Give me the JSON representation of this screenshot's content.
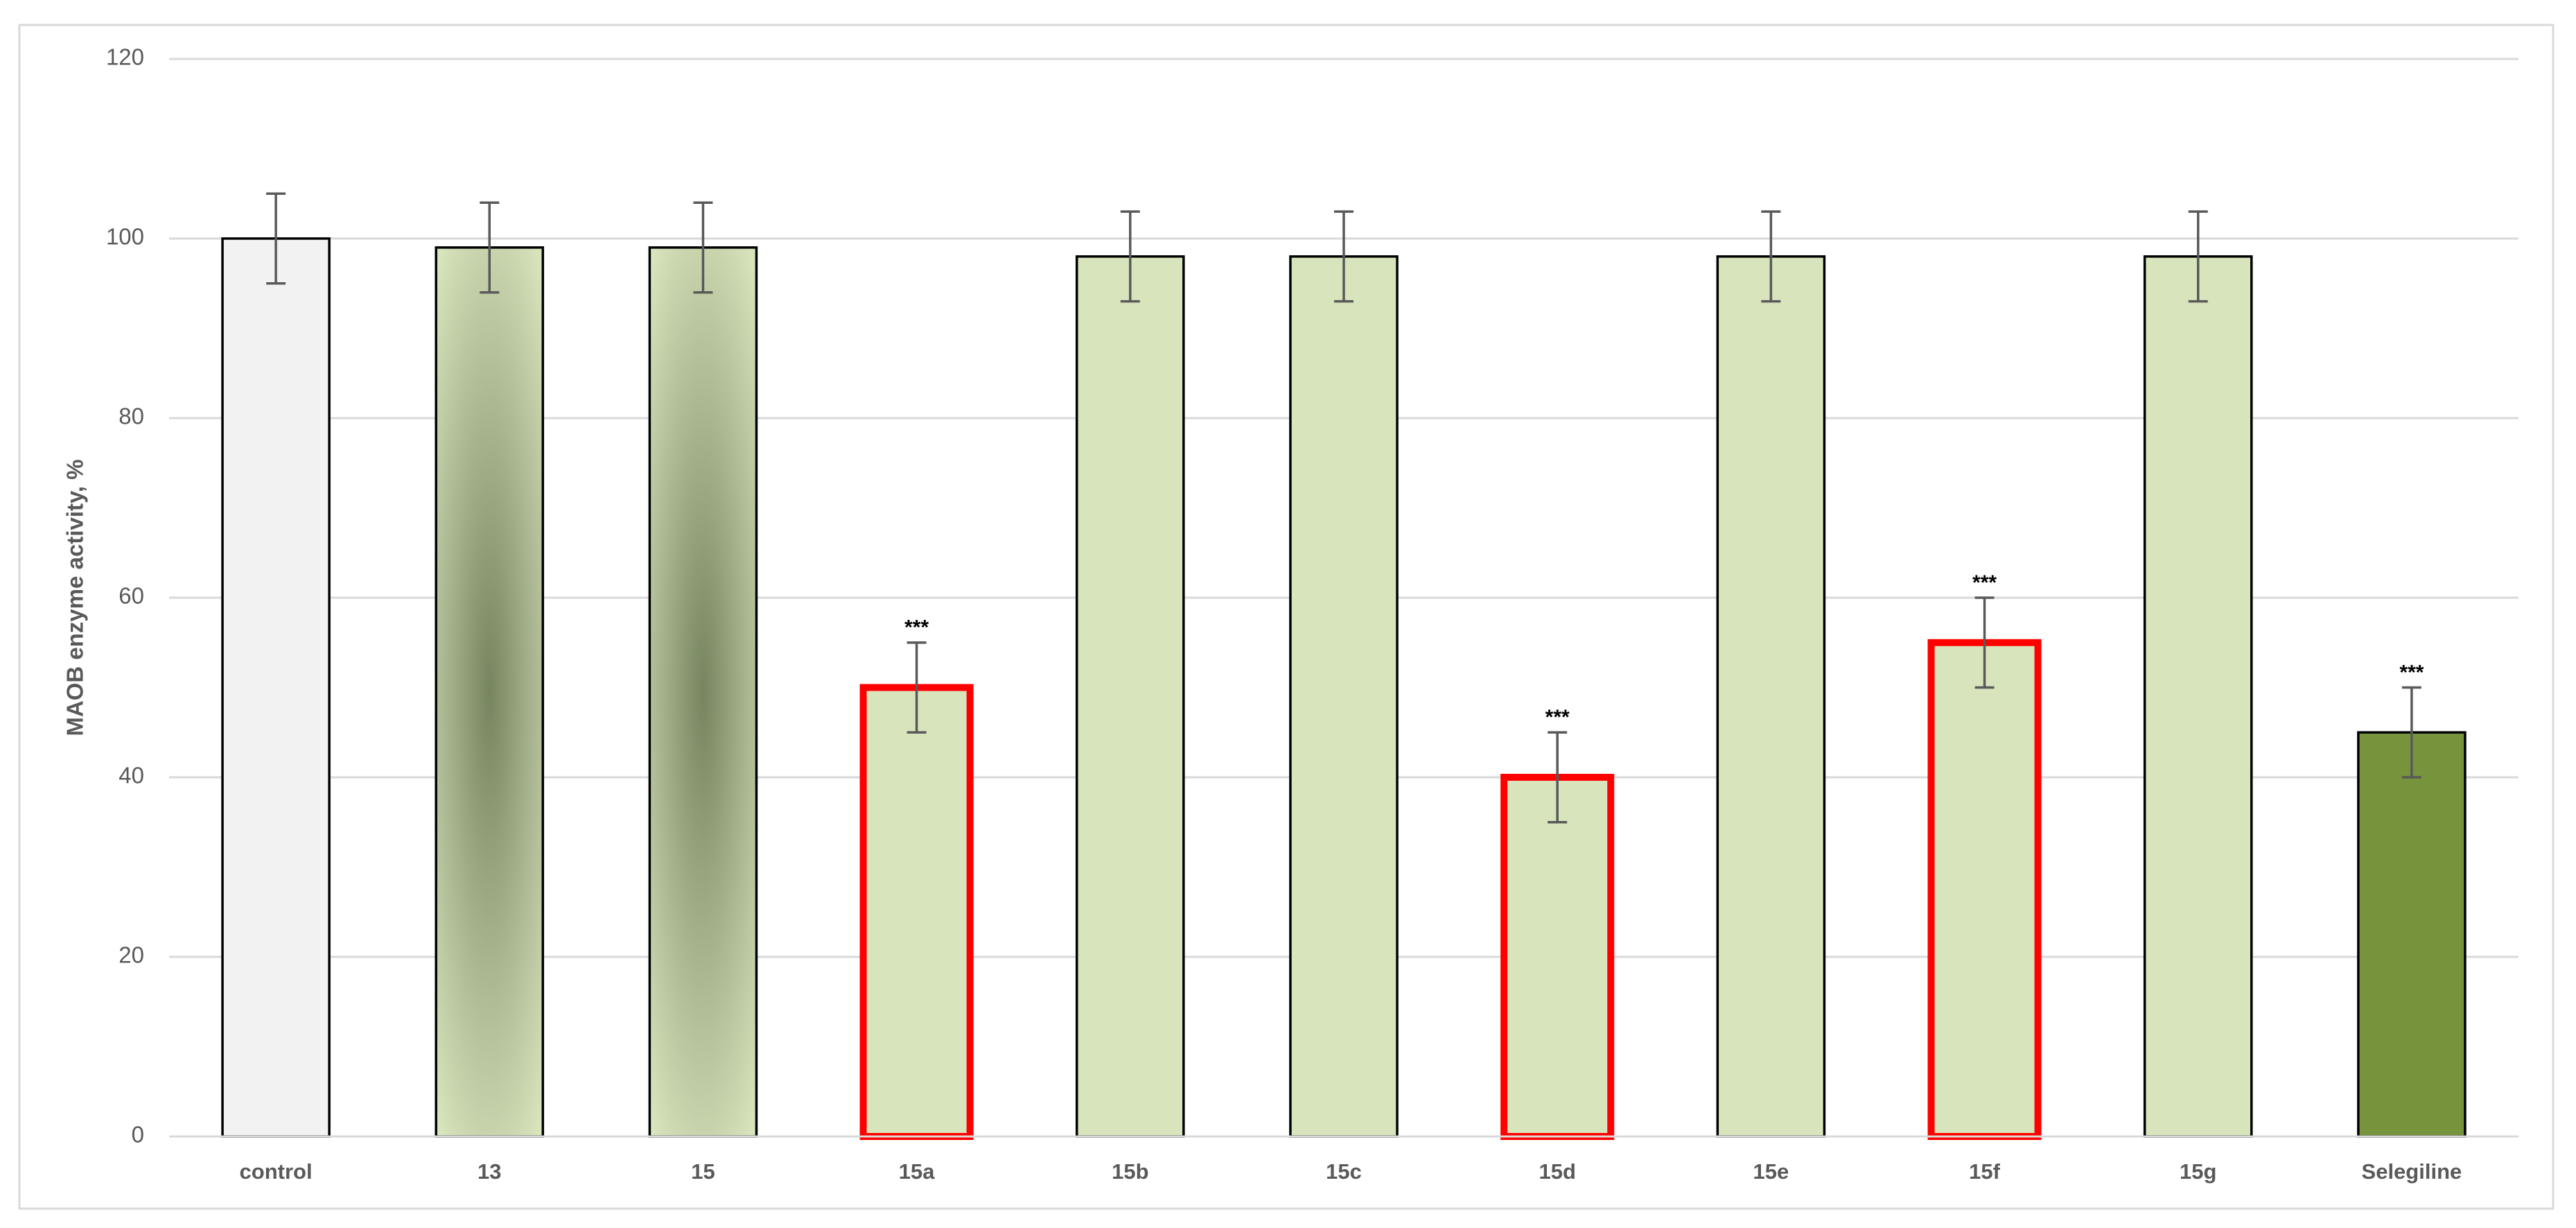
{
  "chart_data": {
    "type": "bar",
    "y_label": "MAOB enzyme activity, %",
    "categories": [
      "control",
      "13",
      "15",
      "15a",
      "15b",
      "15c",
      "15d",
      "15e",
      "15f",
      "15g",
      "Selegiline"
    ],
    "values": [
      100,
      99,
      99,
      50,
      98,
      98,
      40,
      98,
      55,
      98,
      45
    ],
    "errors": [
      5,
      5,
      5,
      5,
      5,
      5,
      5,
      5,
      5,
      5,
      5
    ],
    "significance": [
      null,
      null,
      null,
      "***",
      null,
      null,
      "***",
      null,
      "***",
      null,
      "***"
    ],
    "fills": [
      {
        "type": "solid",
        "color": "#f2f2f2"
      },
      {
        "type": "radial",
        "inner": "#76845f",
        "outer": "#d8e4bc"
      },
      {
        "type": "radial",
        "inner": "#76845f",
        "outer": "#d8e4bc"
      },
      {
        "type": "solid",
        "color": "#d8e4bc"
      },
      {
        "type": "solid",
        "color": "#d8e4bc"
      },
      {
        "type": "solid",
        "color": "#d8e4bc"
      },
      {
        "type": "solid",
        "color": "#d8e4bc"
      },
      {
        "type": "solid",
        "color": "#d8e4bc"
      },
      {
        "type": "solid",
        "color": "#d8e4bc"
      },
      {
        "type": "solid",
        "color": "#d8e4bc"
      },
      {
        "type": "solid",
        "color": "#77933c"
      }
    ],
    "edge_colors": [
      "#000000",
      "#000000",
      "#000000",
      "#ff0000",
      "#000000",
      "#000000",
      "#ff0000",
      "#000000",
      "#ff0000",
      "#000000",
      "#000000"
    ],
    "error_color": "#595959",
    "ylim": [
      0,
      120
    ],
    "yticks": [
      0,
      20,
      40,
      60,
      80,
      100,
      120
    ],
    "grid": true
  }
}
